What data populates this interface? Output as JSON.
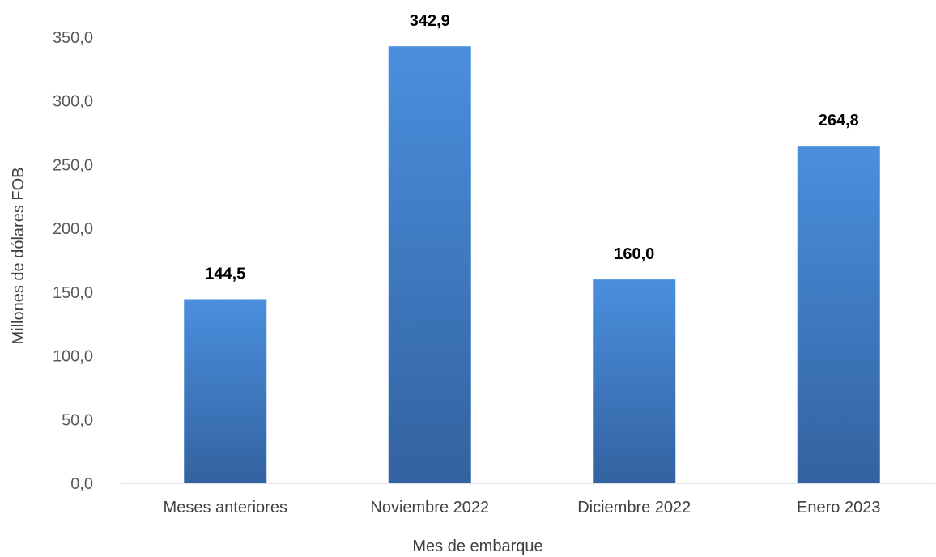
{
  "chart_data": {
    "type": "bar",
    "categories": [
      "Meses anteriores",
      "Noviembre 2022",
      "Diciembre 2022",
      "Enero 2023"
    ],
    "values": [
      144.5,
      342.9,
      160.0,
      264.8
    ],
    "value_labels": [
      "144,5",
      "342,9",
      "160,0",
      "264,8"
    ],
    "title": "",
    "xlabel": "Mes de embarque",
    "ylabel": "Millones de dólares FOB",
    "ylim": [
      0,
      350
    ],
    "yticks": [
      0,
      50,
      100,
      150,
      200,
      250,
      300,
      350
    ],
    "ytick_labels": [
      "0,0",
      "50,0",
      "100,0",
      "150,0",
      "200,0",
      "250,0",
      "300,0",
      "350,0"
    ],
    "grid": false,
    "legend": "none",
    "colors": {
      "bar_top": "#4A8FDE",
      "bar_bottom": "#3362A0",
      "axis": "#D9D9D9"
    }
  }
}
